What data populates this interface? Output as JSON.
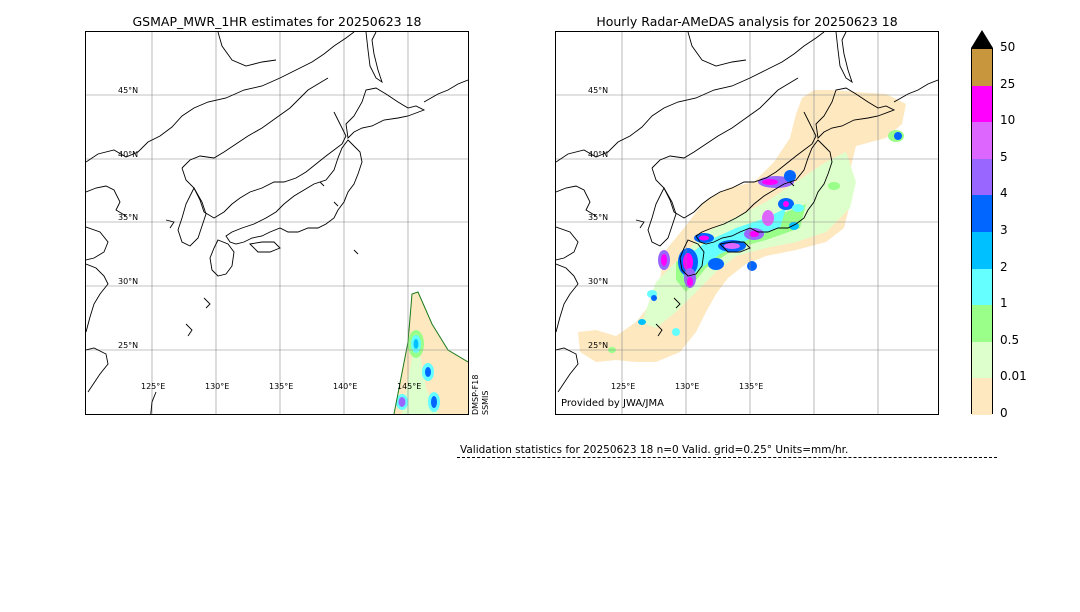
{
  "left_map": {
    "title": "GSMAP_MWR_1HR estimates for 20250623 18",
    "lat_labels": [
      "45°N",
      "40°N",
      "35°N",
      "30°N",
      "25°N"
    ],
    "lon_labels": [
      "125°E",
      "130°E",
      "135°E",
      "140°E",
      "145°E"
    ],
    "sensors": [
      "DMSP-F18",
      "SSMIS"
    ]
  },
  "right_map": {
    "title": "Hourly Radar-AMeDAS analysis for 20250623 18",
    "lat_labels": [
      "45°N",
      "40°N",
      "35°N",
      "30°N",
      "25°N"
    ],
    "lon_labels": [
      "125°E",
      "130°E",
      "135°E"
    ],
    "credit": "Provided by JWA/JMA"
  },
  "colorbar": {
    "labels": [
      "50",
      "25",
      "10",
      "5",
      "4",
      "3",
      "2",
      "1",
      "0.5",
      "0.01",
      "0"
    ],
    "colors": [
      "#c8963c",
      "#ff00ff",
      "#dd66ff",
      "#9966ff",
      "#0066ff",
      "#00c0ff",
      "#66ffff",
      "#99ff88",
      "#ddffcc",
      "#fde8c0"
    ],
    "extend_color": "#000000"
  },
  "validation": "Validation statistics for 20250623 18  n=0 Valid. grid=0.25° Units=mm/hr."
}
